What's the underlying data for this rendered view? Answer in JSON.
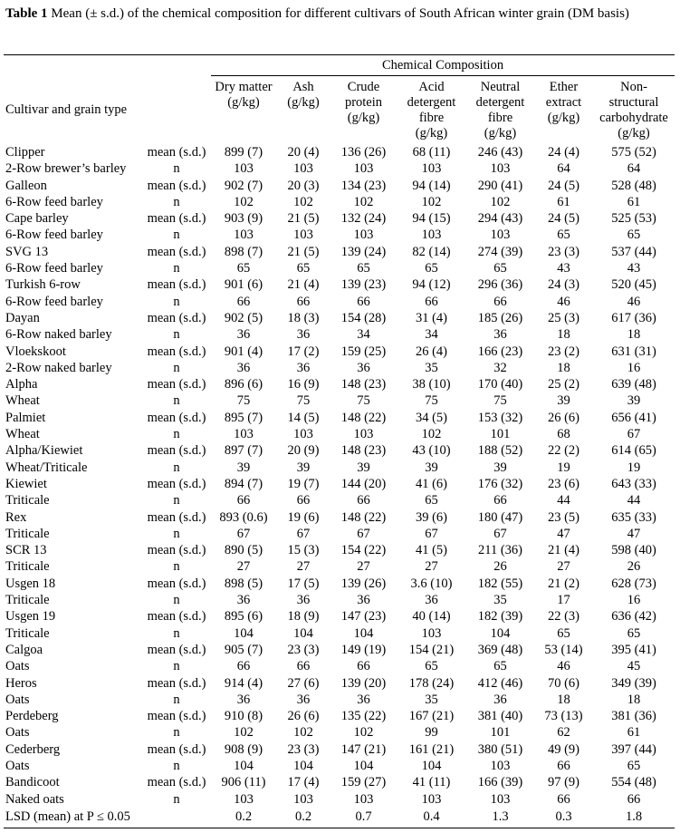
{
  "caption": {
    "label": "Table 1",
    "text": " Mean (± s.d.) of the chemical composition for different cultivars of South African winter grain (DM basis)"
  },
  "header": {
    "group": "Chemical Composition",
    "row_label": "Cultivar and grain type",
    "columns": [
      [
        "Dry matter",
        "(g/kg)"
      ],
      [
        "Ash",
        "(g/kg)"
      ],
      [
        "Crude",
        "protein",
        "(g/kg)"
      ],
      [
        "Acid",
        "detergent",
        "fibre",
        "(g/kg)"
      ],
      [
        "Neutral",
        "detergent",
        "fibre",
        "(g/kg)"
      ],
      [
        "Ether",
        "extract",
        "(g/kg)"
      ],
      [
        "Non-",
        "structural",
        "carbohydrate",
        "(g/kg)"
      ]
    ]
  },
  "rows": [
    [
      "Clipper",
      "mean (s.d.)",
      "899 (7)",
      "20 (4)",
      "136 (26)",
      "68 (11)",
      "246 (43)",
      "24 (4)",
      "575 (52)"
    ],
    [
      "2-Row brewer’s barley",
      "n",
      "103",
      "103",
      "103",
      "103",
      "103",
      "64",
      "64"
    ],
    [
      "Galleon",
      "mean (s.d.)",
      "902 (7)",
      "20 (3)",
      "134 (23)",
      "94 (14)",
      "290 (41)",
      "24 (5)",
      "528 (48)"
    ],
    [
      "6-Row feed barley",
      "n",
      "102",
      "102",
      "102",
      "102",
      "102",
      "61",
      "61"
    ],
    [
      "Cape barley",
      "mean (s.d.)",
      "903 (9)",
      "21 (5)",
      "132 (24)",
      "94 (15)",
      "294 (43)",
      "24 (5)",
      "525 (53)"
    ],
    [
      "6-Row feed barley",
      "n",
      "103",
      "103",
      "103",
      "103",
      "103",
      "65",
      "65"
    ],
    [
      "SVG 13",
      "mean (s.d.)",
      "898 (7)",
      "21 (5)",
      "139 (24)",
      "82 (14)",
      "274 (39)",
      "23 (3)",
      "537 (44)"
    ],
    [
      "6-Row feed barley",
      "n",
      "65",
      "65",
      "65",
      "65",
      "65",
      "43",
      "43"
    ],
    [
      "Turkish 6-row",
      "mean (s.d.)",
      "901 (6)",
      "21 (4)",
      "139 (23)",
      "94 (12)",
      "296 (36)",
      "24 (3)",
      "520 (45)"
    ],
    [
      "6-Row feed barley",
      "n",
      "66",
      "66",
      "66",
      "66",
      "66",
      "46",
      "46"
    ],
    [
      "Dayan",
      "mean (s.d.)",
      "902 (5)",
      "18 (3)",
      "154 (28)",
      "31 (4)",
      "185 (26)",
      "25 (3)",
      "617 (36)"
    ],
    [
      "6-Row naked  barley",
      "n",
      "36",
      "36",
      "34",
      "34",
      "36",
      "18",
      "18"
    ],
    [
      "Vloekskoot",
      "mean (s.d.)",
      "901 (4)",
      "17 (2)",
      "159 (25)",
      "26 (4)",
      "166 (23)",
      "23 (2)",
      "631 (31)"
    ],
    [
      "2-Row naked  barley",
      "n",
      "36",
      "36",
      "36",
      "35",
      "32",
      "18",
      "16"
    ],
    [
      "Alpha",
      "mean (s.d.)",
      "896 (6)",
      "16 (9)",
      "148 (23)",
      "38 (10)",
      "170 (40)",
      "25 (2)",
      "639 (48)"
    ],
    [
      "Wheat",
      "n",
      "75",
      "75",
      "75",
      "75",
      "75",
      "39",
      "39"
    ],
    [
      "Palmiet",
      "mean (s.d.)",
      "895 (7)",
      "14 (5)",
      "148 (22)",
      "34 (5)",
      "153 (32)",
      "26 (6)",
      "656 (41)"
    ],
    [
      "Wheat",
      "n",
      "103",
      "103",
      "103",
      "102",
      "101",
      "68",
      "67"
    ],
    [
      "Alpha/Kiewiet",
      "mean (s.d.)",
      "897 (7)",
      "20 (9)",
      "148 (23)",
      "43 (10)",
      "188 (52)",
      "22 (2)",
      "614 (65)"
    ],
    [
      "Wheat/Triticale",
      "n",
      "39",
      "39",
      "39",
      "39",
      "39",
      "19",
      "19"
    ],
    [
      "Kiewiet",
      "mean (s.d.)",
      "894 (7)",
      "19 (7)",
      "144 (20)",
      "41 (6)",
      "176 (32)",
      "23 (6)",
      "643 (33)"
    ],
    [
      "Triticale",
      "n",
      "66",
      "66",
      "66",
      "65",
      "66",
      "44",
      "44"
    ],
    [
      "Rex",
      "mean (s.d.)",
      "893 (0.6)",
      "19 (6)",
      "148 (22)",
      "39 (6)",
      "180 (47)",
      "23 (5)",
      "635 (33)"
    ],
    [
      "Triticale",
      "n",
      "67",
      "67",
      "67",
      "67",
      "67",
      "47",
      "47"
    ],
    [
      "SCR 13",
      "mean (s.d.)",
      "890 (5)",
      "15 (3)",
      "154 (22)",
      "41 (5)",
      "211 (36)",
      "21 (4)",
      "598 (40)"
    ],
    [
      "Triticale",
      "n",
      "27",
      "27",
      "27",
      "27",
      "26",
      "27",
      "26"
    ],
    [
      "Usgen 18",
      "mean (s.d.)",
      "898 (5)",
      "17 (5)",
      "139 (26)",
      "3.6 (10)",
      "182 (55)",
      "21 (2)",
      "628 (73)"
    ],
    [
      "Triticale",
      "n",
      "36",
      "36",
      "36",
      "36",
      "35",
      "17",
      "16"
    ],
    [
      "Usgen 19",
      "mean (s.d.)",
      "895 (6)",
      "18 (9)",
      "147 (23)",
      "40 (14)",
      "182 (39)",
      "22 (3)",
      "636 (42)"
    ],
    [
      "Triticale",
      "n",
      "104",
      "104",
      "104",
      "103",
      "104",
      "65",
      "65"
    ],
    [
      "Calgoa",
      "mean (s.d.)",
      "905 (7)",
      "23 (3)",
      "149 (19)",
      "154 (21)",
      "369 (48)",
      "53 (14)",
      "395 (41)"
    ],
    [
      "Oats",
      "n",
      "66",
      "66",
      "66",
      "65",
      "65",
      "46",
      "45"
    ],
    [
      "Heros",
      "mean (s.d.)",
      "914 (4)",
      "27 (6)",
      "139 (20)",
      "178 (24)",
      "412 (46)",
      "70 (6)",
      "349 (39)"
    ],
    [
      "Oats",
      "n",
      "36",
      "36",
      "36",
      "35",
      "36",
      "18",
      "18"
    ],
    [
      "Perdeberg",
      "mean (s.d.)",
      "910 (8)",
      "26 (6)",
      "135 (22)",
      "167 (21)",
      "381 (40)",
      "73 (13)",
      "381 (36)"
    ],
    [
      "Oats",
      "n",
      "102",
      "102",
      "102",
      "99",
      "101",
      "62",
      "61"
    ],
    [
      "Cederberg",
      "mean (s.d.)",
      "908 (9)",
      "23 (3)",
      "147 (21)",
      "161 (21)",
      "380 (51)",
      "49 (9)",
      "397 (44)"
    ],
    [
      "Oats",
      "n",
      "104",
      "104",
      "104",
      "104",
      "103",
      "66",
      "65"
    ],
    [
      "Bandicoot",
      "mean (s.d.)",
      "906 (11)",
      "17 (4)",
      "159 (27)",
      "41 (11)",
      "166 (39)",
      "97 (9)",
      "554 (48)"
    ],
    [
      "Naked oats",
      "n",
      "103",
      "103",
      "103",
      "103",
      "103",
      "66",
      "66"
    ]
  ],
  "lsd": {
    "label": "LSD (mean) at P ≤ 0.05",
    "values": [
      "0.2",
      "0.2",
      "0.7",
      "0.4",
      "1.3",
      "0.3",
      "1.8"
    ]
  }
}
